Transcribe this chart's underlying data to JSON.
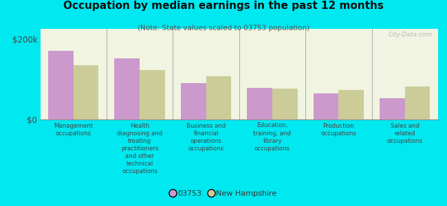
{
  "title": "Occupation by median earnings in the past 12 months",
  "subtitle": "(Note: State values scaled to 03753 population)",
  "categories": [
    "Management\noccupations",
    "Health\ndiagnosing and\ntreating\npractitioners\nand other\ntechnical\noccupations",
    "Business and\nfinancial\noperations\noccupations",
    "Education,\ntraining, and\nlibrary\noccupations",
    "Production\noccupations",
    "Sales and\nrelated\noccupations"
  ],
  "values_03753": [
    170000,
    152000,
    90000,
    78000,
    65000,
    52000
  ],
  "values_nh": [
    135000,
    122000,
    108000,
    76000,
    74000,
    82000
  ],
  "color_03753": "#cc99cc",
  "color_nh": "#cccc99",
  "ylabel_ticks": [
    "$0",
    "$200k"
  ],
  "yticks": [
    0,
    200000
  ],
  "ylim": [
    0,
    225000
  ],
  "background_color": "#f0f4e0",
  "outer_background": "#00e8f0",
  "legend_03753": "03753",
  "legend_nh": "New Hampshire",
  "watermark": "City-Data.com"
}
